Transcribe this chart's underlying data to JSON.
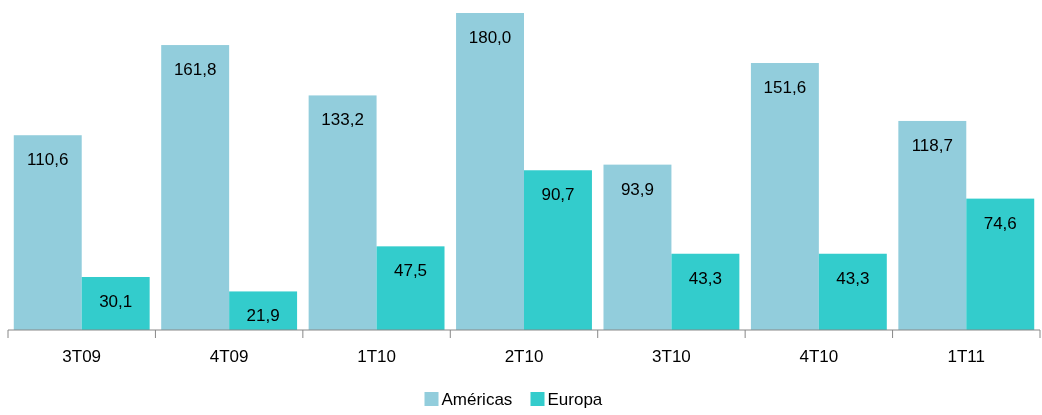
{
  "chart_data": {
    "type": "bar",
    "categories": [
      "3T09",
      "4T09",
      "1T10",
      "2T10",
      "3T10",
      "4T10",
      "1T11"
    ],
    "series": [
      {
        "name": "Américas",
        "color": "#92cddc",
        "values": [
          110.6,
          161.8,
          133.2,
          180.0,
          93.9,
          151.6,
          118.7
        ],
        "value_labels": [
          "110,6",
          "161,8",
          "133,2",
          "180,0",
          "93,9",
          "151,6",
          "118,7"
        ]
      },
      {
        "name": "Europa",
        "color": "#33cccc",
        "values": [
          30.1,
          21.9,
          47.5,
          90.7,
          43.3,
          43.3,
          74.6
        ],
        "value_labels": [
          "30,1",
          "21,9",
          "47,5",
          "90,7",
          "43,3",
          "43,3",
          "74,6"
        ]
      }
    ],
    "legend": "bottom"
  }
}
